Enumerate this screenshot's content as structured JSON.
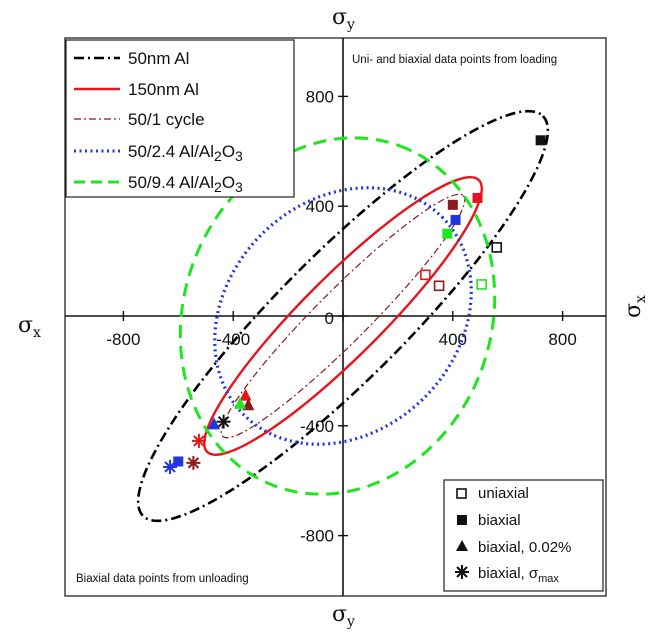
{
  "chart_data": {
    "type": "scatter",
    "xlim": [
      -1180,
      1160
    ],
    "ylim": [
      -1180,
      1050
    ],
    "x_ticks": [
      -800,
      -400,
      0,
      400,
      800
    ],
    "y_ticks": [
      800,
      400,
      0,
      -400,
      -800
    ],
    "x_tick_labels": [
      "-800",
      "-400",
      "0",
      "400",
      "800"
    ],
    "y_tick_labels": [
      "800",
      "400",
      "0",
      "-400",
      "-800"
    ],
    "axis_labels": {
      "top": {
        "main": "σ",
        "sub": "y"
      },
      "bottom": {
        "main": "σ",
        "sub": "y"
      },
      "left": {
        "main": "σ",
        "sub": "x"
      },
      "right": {
        "main": "σ",
        "sub": "x"
      }
    },
    "annotations": {
      "top_right": "Uni- and biaxial data points from loading",
      "bottom_left": "Biaxial data points from unloading"
    },
    "legend_position": "top-left",
    "series": [
      {
        "name": "50nm Al",
        "kind": "ellipse",
        "color": "#000000",
        "style": "dashdot",
        "center": [
          0,
          0
        ],
        "semi_major": 1030,
        "semi_minor": 230,
        "angle_deg": 45
      },
      {
        "name": "150nm Al",
        "kind": "ellipse",
        "color": "#e8141b",
        "style": "solid",
        "center": [
          0,
          0
        ],
        "semi_major": 700,
        "semi_minor": 145,
        "angle_deg": 45
      },
      {
        "name": "50/1 cycle",
        "kind": "ellipse",
        "color": "#8b1a1a",
        "style": "dashdot-thin",
        "center": [
          0,
          0
        ],
        "semi_major": 620,
        "semi_minor": 95,
        "angle_deg": 45
      },
      {
        "name_main": "50/2.4 Al/Al",
        "name_sub": "2",
        "name_tail": "O",
        "name_sub2": "3",
        "kind": "ellipse",
        "color": "#1f35e0",
        "style": "dotted",
        "center": [
          0,
          0
        ],
        "semi_major": 510,
        "semi_minor": 420,
        "angle_deg": 45
      },
      {
        "name_main": "50/9.4 Al/Al",
        "name_sub": "2",
        "name_tail": "O",
        "name_sub2": "3",
        "kind": "ellipse",
        "color": "#1ee61e",
        "style": "dashed",
        "center": [
          -20,
          0
        ],
        "semi_major": 660,
        "semi_minor": 560,
        "angle_deg": 70
      }
    ],
    "points": [
      {
        "x": 720,
        "y": 640,
        "marker": "square-filled",
        "color": "#111111"
      },
      {
        "x": 560,
        "y": 250,
        "marker": "square-open",
        "color": "#111111"
      },
      {
        "x": 490,
        "y": 430,
        "marker": "square-filled",
        "color": "#e8141b"
      },
      {
        "x": 400,
        "y": 405,
        "marker": "square-filled",
        "color": "#8b1a1a"
      },
      {
        "x": 410,
        "y": 350,
        "marker": "square-filled",
        "color": "#1f35e0"
      },
      {
        "x": 380,
        "y": 300,
        "marker": "square-filled",
        "color": "#1ee61e"
      },
      {
        "x": 300,
        "y": 150,
        "marker": "square-open",
        "color": "#e8141b"
      },
      {
        "x": 350,
        "y": 110,
        "marker": "square-open",
        "color": "#8b1a1a"
      },
      {
        "x": 505,
        "y": 115,
        "marker": "square-open",
        "color": "#1ee61e"
      },
      {
        "x": -600,
        "y": -530,
        "marker": "square-filled",
        "color": "#1f35e0"
      },
      {
        "x": -355,
        "y": -290,
        "marker": "triangle-filled",
        "color": "#e8141b"
      },
      {
        "x": -345,
        "y": -325,
        "marker": "triangle-filled",
        "color": "#8b1a1a"
      },
      {
        "x": -470,
        "y": -395,
        "marker": "triangle-filled",
        "color": "#1f35e0"
      },
      {
        "x": -375,
        "y": -320,
        "marker": "triangle-filled",
        "color": "#1ee61e"
      },
      {
        "x": -435,
        "y": -385,
        "marker": "asterisk",
        "color": "#111111"
      },
      {
        "x": -525,
        "y": -455,
        "marker": "asterisk",
        "color": "#e8141b"
      },
      {
        "x": -545,
        "y": -535,
        "marker": "asterisk",
        "color": "#8b1a1a"
      },
      {
        "x": -630,
        "y": -550,
        "marker": "asterisk",
        "color": "#1f35e0"
      }
    ],
    "marker_legend": [
      {
        "marker": "square-open",
        "label": "uniaxial"
      },
      {
        "marker": "square-filled",
        "label": "biaxial"
      },
      {
        "marker": "triangle-filled",
        "label": "biaxial, 0.02%"
      },
      {
        "marker": "asterisk",
        "label_main": "biaxial, σ",
        "label_sub": "max"
      }
    ]
  }
}
